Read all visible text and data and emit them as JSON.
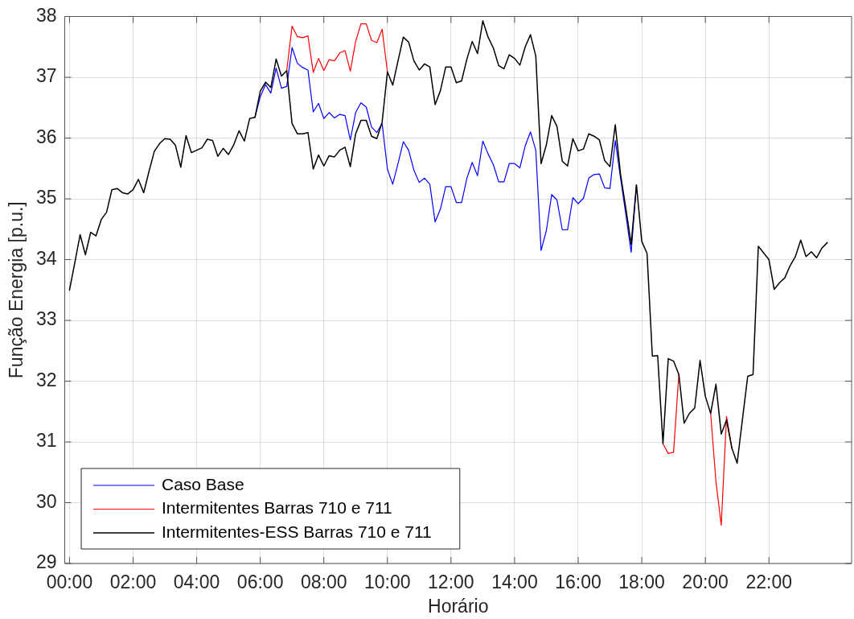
{
  "chart_data": {
    "type": "line",
    "xlabel": "Horário",
    "ylabel": "Função Energia [p.u.]",
    "legend": "bottom left",
    "grid": true,
    "xlim": [
      -0.15,
      24.6
    ],
    "xticks": [
      {
        "value": 0,
        "label": "00:00"
      },
      {
        "value": 2,
        "label": "02:00"
      },
      {
        "value": 4,
        "label": "04:00"
      },
      {
        "value": 6,
        "label": "06:00"
      },
      {
        "value": 8,
        "label": "08:00"
      },
      {
        "value": 10,
        "label": "10:00"
      },
      {
        "value": 12,
        "label": "12:00"
      },
      {
        "value": 14,
        "label": "14:00"
      },
      {
        "value": 16,
        "label": "16:00"
      },
      {
        "value": 18,
        "label": "18:00"
      },
      {
        "value": 20,
        "label": "20:00"
      },
      {
        "value": 22,
        "label": "22:00"
      }
    ],
    "ylim": [
      29,
      38
    ],
    "yticks": [
      29,
      30,
      31,
      32,
      33,
      34,
      35,
      36,
      37,
      38
    ],
    "x": [
      0,
      0.1667,
      0.3333,
      0.5,
      0.6667,
      0.8333,
      1,
      1.1667,
      1.3333,
      1.5,
      1.6667,
      1.8333,
      2,
      2.1667,
      2.3333,
      2.5,
      2.6667,
      2.8333,
      3,
      3.1667,
      3.3333,
      3.5,
      3.6667,
      3.8333,
      4,
      4.1667,
      4.3333,
      4.5,
      4.6667,
      4.8333,
      5,
      5.1667,
      5.3333,
      5.5,
      5.6667,
      5.8333,
      6,
      6.1667,
      6.3333,
      6.5,
      6.6667,
      6.8333,
      7,
      7.1667,
      7.3333,
      7.5,
      7.6667,
      7.8333,
      8,
      8.1667,
      8.3333,
      8.5,
      8.6667,
      8.8333,
      9,
      9.1667,
      9.3333,
      9.5,
      9.6667,
      9.8333,
      10,
      10.1667,
      10.3333,
      10.5,
      10.6667,
      10.8333,
      11,
      11.1667,
      11.3333,
      11.5,
      11.6667,
      11.8333,
      12,
      12.1667,
      12.3333,
      12.5,
      12.6667,
      12.8333,
      13,
      13.1667,
      13.3333,
      13.5,
      13.6667,
      13.8333,
      14,
      14.1667,
      14.3333,
      14.5,
      14.6667,
      14.8333,
      15,
      15.1667,
      15.3333,
      15.5,
      15.6667,
      15.8333,
      16,
      16.1667,
      16.3333,
      16.5,
      16.6667,
      16.8333,
      17,
      17.1667,
      17.3333,
      17.5,
      17.6667,
      17.8333,
      18,
      18.1667,
      18.3333,
      18.5,
      18.6667,
      18.8333,
      19,
      19.1667,
      19.3333,
      19.5,
      19.6667,
      19.8333,
      20,
      20.1667,
      20.3333,
      20.5,
      20.6667,
      20.8333,
      21,
      21.1667,
      21.3333,
      21.5,
      21.6667,
      21.8333,
      22,
      22.1667,
      22.3333,
      22.5,
      22.6667,
      22.8333,
      23,
      23.1667,
      23.3333,
      23.5,
      23.6667,
      23.8333
    ],
    "series": [
      {
        "name": "Caso Base",
        "color": "#0000ff",
        "values": [
          null,
          null,
          null,
          null,
          null,
          null,
          null,
          null,
          null,
          null,
          null,
          null,
          null,
          null,
          null,
          null,
          null,
          null,
          null,
          null,
          null,
          null,
          null,
          null,
          null,
          null,
          null,
          null,
          null,
          null,
          null,
          null,
          null,
          null,
          null,
          36.34,
          36.68,
          36.88,
          36.74,
          37.15,
          36.82,
          36.85,
          37.49,
          37.23,
          37.16,
          37.12,
          36.43,
          36.57,
          36.32,
          36.42,
          36.33,
          36.39,
          36.37,
          35.97,
          36.42,
          36.58,
          36.51,
          36.18,
          36.09,
          36.24,
          35.49,
          35.24,
          35.58,
          35.94,
          35.8,
          35.47,
          35.27,
          35.34,
          35.24,
          34.62,
          34.83,
          35.2,
          35.2,
          34.94,
          34.94,
          35.34,
          35.6,
          35.38,
          35.95,
          35.74,
          35.56,
          35.28,
          35.28,
          35.58,
          35.58,
          35.51,
          35.87,
          36.1,
          35.8,
          34.15,
          34.48,
          35.07,
          34.98,
          34.49,
          34.49,
          35.02,
          34.92,
          35.01,
          35.34,
          35.4,
          35.41,
          35.18,
          35.17,
          35.96,
          35.34,
          34.74,
          34.12,
          35.23,
          null,
          null,
          null,
          null,
          null,
          null,
          null,
          null,
          null,
          null,
          null,
          null,
          null,
          null,
          null,
          null,
          null,
          null,
          null,
          null,
          null,
          null,
          null,
          null,
          null,
          null,
          null,
          null,
          null,
          null,
          null,
          null,
          null,
          null,
          null,
          null
        ]
      },
      {
        "name": "Intermitentes Barras 710 e 711",
        "color": "#ff0000",
        "values": [
          null,
          null,
          null,
          null,
          null,
          null,
          null,
          null,
          null,
          null,
          null,
          null,
          null,
          null,
          null,
          null,
          null,
          null,
          null,
          null,
          null,
          null,
          null,
          null,
          null,
          null,
          null,
          null,
          null,
          null,
          null,
          null,
          null,
          null,
          null,
          null,
          null,
          null,
          null,
          null,
          null,
          37.11,
          37.84,
          37.67,
          37.65,
          37.68,
          37.08,
          37.31,
          37.11,
          37.29,
          37.27,
          37.4,
          37.44,
          37.1,
          37.59,
          37.88,
          37.88,
          37.61,
          37.57,
          37.79,
          37.09,
          null,
          null,
          null,
          null,
          null,
          null,
          null,
          null,
          null,
          null,
          null,
          null,
          null,
          null,
          null,
          null,
          null,
          null,
          null,
          null,
          null,
          null,
          null,
          null,
          null,
          null,
          null,
          null,
          null,
          null,
          null,
          null,
          null,
          null,
          null,
          null,
          null,
          null,
          null,
          null,
          null,
          null,
          null,
          null,
          null,
          null,
          null,
          null,
          null,
          null,
          null,
          30.97,
          30.81,
          30.83,
          32.11,
          null,
          null,
          null,
          null,
          null,
          31.47,
          30.35,
          29.63,
          31.42,
          30.9,
          null,
          null,
          null,
          null,
          null,
          null,
          null,
          null,
          null,
          null,
          null,
          null,
          null,
          null,
          null,
          null,
          null,
          null
        ]
      },
      {
        "name": "Intermitentes-ESS Barras 710 e 711",
        "color": "#000000",
        "values": [
          33.5,
          33.95,
          34.41,
          34.08,
          34.45,
          34.39,
          34.66,
          34.78,
          35.15,
          35.17,
          35.1,
          35.08,
          35.15,
          35.32,
          35.1,
          35.45,
          35.78,
          35.91,
          35.99,
          35.98,
          35.88,
          35.52,
          36.04,
          35.76,
          35.8,
          35.84,
          35.98,
          35.96,
          35.7,
          35.83,
          35.73,
          35.89,
          36.12,
          35.95,
          36.32,
          36.34,
          36.77,
          36.92,
          36.83,
          37.3,
          37.02,
          37.11,
          36.24,
          36.07,
          36.07,
          36.09,
          35.49,
          35.72,
          35.54,
          35.71,
          35.69,
          35.8,
          35.85,
          35.53,
          36.07,
          36.29,
          36.29,
          36.03,
          35.99,
          36.26,
          37.09,
          36.87,
          37.27,
          37.66,
          37.58,
          37.27,
          37.12,
          37.22,
          37.17,
          36.55,
          36.78,
          37.17,
          37.17,
          36.91,
          36.94,
          37.3,
          37.59,
          37.39,
          37.93,
          37.66,
          37.48,
          37.19,
          37.14,
          37.37,
          37.31,
          37.2,
          37.5,
          37.7,
          37.35,
          35.58,
          35.89,
          36.37,
          36.19,
          35.62,
          35.54,
          35.99,
          35.79,
          35.82,
          36.07,
          36.03,
          35.97,
          35.63,
          35.53,
          36.22,
          35.4,
          34.84,
          34.25,
          35.23,
          34.3,
          34.1,
          32.41,
          32.42,
          30.97,
          32.37,
          32.33,
          32.11,
          31.31,
          31.47,
          31.56,
          32.34,
          31.75,
          31.47,
          31.95,
          31.13,
          31.36,
          30.9,
          30.65,
          31.37,
          32.08,
          32.11,
          34.22,
          34.11,
          34.0,
          33.51,
          33.62,
          33.7,
          33.9,
          34.05,
          34.32,
          34.05,
          34.13,
          34.03,
          34.19,
          34.28
        ]
      }
    ]
  }
}
